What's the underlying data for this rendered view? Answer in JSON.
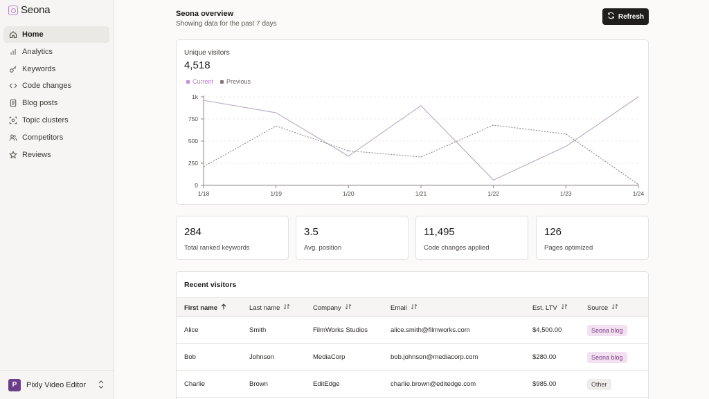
{
  "app": {
    "name": "Seona"
  },
  "sidebar": {
    "items": [
      {
        "label": "Home",
        "icon": "home-icon",
        "active": true
      },
      {
        "label": "Analytics",
        "icon": "bar-chart-icon"
      },
      {
        "label": "Keywords",
        "icon": "key-icon"
      },
      {
        "label": "Code changes",
        "icon": "code-icon"
      },
      {
        "label": "Blog posts",
        "icon": "document-icon"
      },
      {
        "label": "Topic clusters",
        "icon": "scan-icon"
      },
      {
        "label": "Competitors",
        "icon": "users-icon"
      },
      {
        "label": "Reviews",
        "icon": "star-icon"
      }
    ],
    "workspace": {
      "initial": "P",
      "name": "Pixly Video Editor"
    }
  },
  "header": {
    "title": "Seona overview",
    "subtitle": "Showing data for the past 7 days",
    "refresh_label": "Refresh"
  },
  "visitors": {
    "label": "Unique visitors",
    "value": "4,518"
  },
  "chart_data": {
    "type": "line",
    "categories": [
      "1/18",
      "1/19",
      "1/20",
      "1/21",
      "1/22",
      "1/23",
      "1/24"
    ],
    "series": [
      {
        "name": "Current",
        "values": [
          960,
          820,
          330,
          900,
          60,
          440,
          1000
        ],
        "color": "#b9a7c2",
        "style": "solid"
      },
      {
        "name": "Previous",
        "values": [
          210,
          670,
          390,
          320,
          680,
          580,
          10
        ],
        "color": "#8c8783",
        "style": "dashed"
      }
    ],
    "yticks": [
      "0",
      "250",
      "500",
      "750",
      "1k"
    ],
    "ylim": [
      0,
      1000
    ],
    "grid": true,
    "legend_colors": {
      "current": "#c48fd0",
      "previous": "#7d7874"
    }
  },
  "stats": [
    {
      "value": "284",
      "label": "Total ranked keywords"
    },
    {
      "value": "3.5",
      "label": "Avg. position"
    },
    {
      "value": "11,495",
      "label": "Code changes applied"
    },
    {
      "value": "126",
      "label": "Pages optimized"
    }
  ],
  "table": {
    "title": "Recent visitors",
    "columns": [
      "First name",
      "Last name",
      "Company",
      "Email",
      "Est. LTV",
      "Source"
    ],
    "rows": [
      {
        "first": "Alice",
        "last": "Smith",
        "company": "FilmWorks Studios",
        "email": "alice.smith@filmworks.com",
        "ltv": "$4,500.00",
        "source": "Seona blog",
        "source_style": "purple"
      },
      {
        "first": "Bob",
        "last": "Johnson",
        "company": "MediaCorp",
        "email": "bob.johnson@mediacorp.com",
        "ltv": "$280.00",
        "source": "Seona blog",
        "source_style": "purple"
      },
      {
        "first": "Charlie",
        "last": "Brown",
        "company": "EditEdge",
        "email": "charlie.brown@editedge.com",
        "ltv": "$985.00",
        "source": "Other",
        "source_style": "gray"
      }
    ]
  }
}
